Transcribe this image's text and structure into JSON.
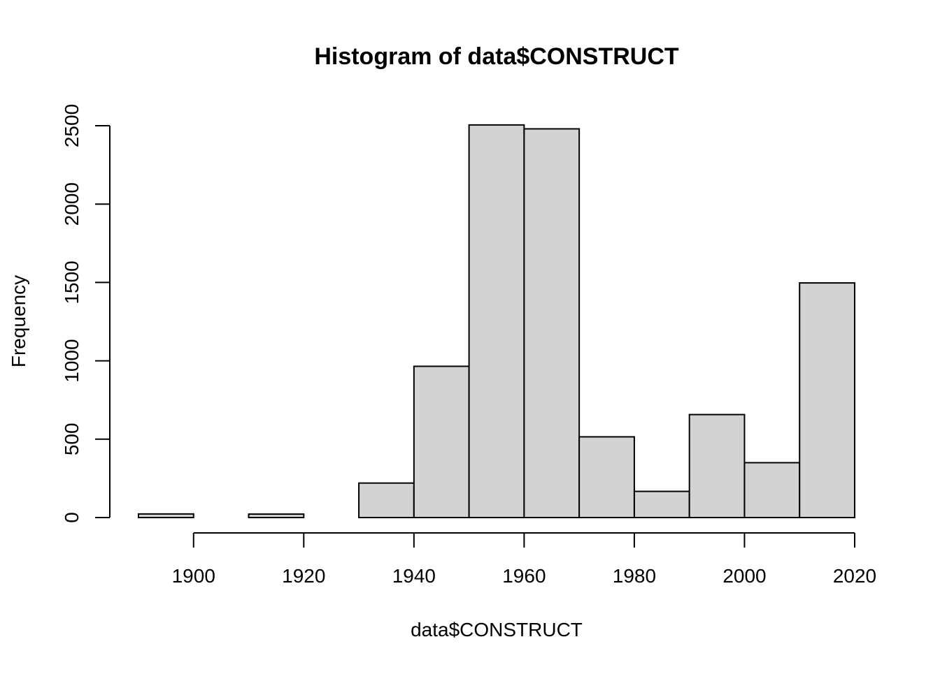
{
  "chart_data": {
    "type": "bar",
    "subtype": "histogram",
    "title": "Histogram of data$CONSTRUCT",
    "xlabel": "data$CONSTRUCT",
    "ylabel": "Frequency",
    "bins": [
      {
        "start": 1890,
        "end": 1900,
        "count": 23
      },
      {
        "start": 1900,
        "end": 1910,
        "count": 0
      },
      {
        "start": 1910,
        "end": 1920,
        "count": 22
      },
      {
        "start": 1920,
        "end": 1930,
        "count": 0
      },
      {
        "start": 1930,
        "end": 1940,
        "count": 220
      },
      {
        "start": 1940,
        "end": 1950,
        "count": 965
      },
      {
        "start": 1950,
        "end": 1960,
        "count": 2505
      },
      {
        "start": 1960,
        "end": 1970,
        "count": 2480
      },
      {
        "start": 1970,
        "end": 1980,
        "count": 515
      },
      {
        "start": 1980,
        "end": 1990,
        "count": 167
      },
      {
        "start": 1990,
        "end": 2000,
        "count": 657
      },
      {
        "start": 2000,
        "end": 2010,
        "count": 350
      },
      {
        "start": 2010,
        "end": 2020,
        "count": 1497
      }
    ],
    "x_ticks": [
      "1900",
      "1920",
      "1940",
      "1960",
      "1980",
      "2000",
      "2020"
    ],
    "y_ticks": [
      "0",
      "500",
      "1000",
      "1500",
      "2000",
      "2500"
    ],
    "xlim": [
      1890,
      2020
    ],
    "ylim": [
      0,
      2500
    ],
    "grid": false,
    "bar_fill": "#d3d3d3",
    "bar_stroke": "#000000"
  }
}
